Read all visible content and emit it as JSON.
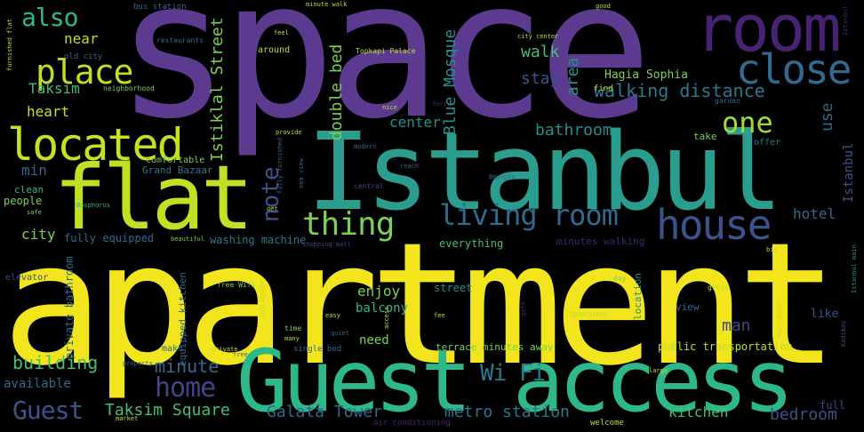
{
  "words": {
    "space": "space",
    "apartment": "apartment",
    "istanbul": "Istanbul",
    "guest_access": "Guest access",
    "flat": "flat",
    "room": "room",
    "located": "located",
    "close": "close",
    "place": "place",
    "house": "house",
    "living_room": "living room",
    "thing": "thing",
    "one": "one",
    "home": "home",
    "guest": "Guest",
    "wi_fi": "Wi Fi",
    "note": "note",
    "also": "also",
    "walking_distance": "walking distance",
    "building": "building",
    "minute": "minute",
    "taksim_square": "Taksim Square",
    "galata_tower": "Galata Tower",
    "metro_station": "metro station",
    "kitchen": "kitchen",
    "bedroom": "bedroom",
    "hotel": "hotel",
    "istiklal_street": "Istiklal Street",
    "blue_mosque": "Blue Mosque",
    "double_bed": "double bed",
    "bathroom": "bathroom",
    "heart": "heart",
    "taksim": "Taksim",
    "near": "near",
    "walk": "walk",
    "area": "area",
    "stay": "stay",
    "hagia_sophia": "Hagia Sophia",
    "center": "center",
    "city": "city",
    "min": "min",
    "enjoy": "enjoy",
    "balcony": "balcony",
    "need": "need",
    "street": "street",
    "available": "available",
    "fully_equipped": "fully equipped",
    "washing_machine": "washing machine",
    "everything": "everything",
    "location": "location",
    "view": "view",
    "terrace_minutes_away": "terrace minutes away",
    "public_transportation": "public transportation",
    "man": "man",
    "use": "use",
    "istanbul_small": "Istanbul",
    "elevator": "elevator",
    "people": "people",
    "clean": "clean",
    "grand_bazaar": "Grand Bazaar",
    "comfortable": "comfortable",
    "private_bathroom": "private bathroom",
    "equipped_kitchen": "equipped kitchen",
    "old_city": "old city",
    "bus_station": "bus station",
    "topkapi_palace": "Topkapi Palace",
    "around": "around",
    "neighborhood": "neighborhood",
    "minutes_walking": "minutes walking",
    "sultanahmet": "Sultanahmet",
    "make": "make",
    "single_bed": "single bed",
    "spacious": "spacious",
    "like": "like",
    "free_wifi": "free Wifi",
    "restaurants": "restaurants",
    "welcome": "welcome",
    "air_conditioning": "air conditioning",
    "full": "full",
    "take": "take",
    "offer": "offer",
    "great": "great",
    "day": "day",
    "shopping_mall": "shopping mall",
    "beautiful": "beautiful",
    "find": "find",
    "garden": "garden",
    "modern": "modern",
    "safe": "safe",
    "free": "free",
    "market": "market",
    "good": "good",
    "bosphorus": "Bosphorus",
    "beyoglu": "Beyoglu",
    "kadikoy": "Kadikoy",
    "reach": "reach",
    "central": "central",
    "provide": "provide",
    "fully_furnished": "fully furnished",
    "sea_view": "sea view",
    "hair_dryer": "hair dryer",
    "property": "property",
    "private": "private",
    "get": "get",
    "feel": "feel",
    "istanbul_tiny": "Istanbul",
    "gate": "gate",
    "many": "many",
    "easy": "easy",
    "time": "time",
    "quiet": "quiet",
    "access": "access",
    "nice": "nice",
    "ferry": "ferry",
    "large": "large",
    "big": "big",
    "fee": "fee",
    "minute_walk": "minute walk",
    "city_center": "city center",
    "furnished_flat": "furnished flat",
    "istanbul_main": "Istanbul main"
  },
  "colors": {
    "background": "#000000",
    "purple_dark": "#482374",
    "purple": "#5c3a8f",
    "indigo": "#414487",
    "blue": "#3b528b",
    "steel": "#31688e",
    "teal_blue": "#2a788e",
    "teal": "#21918c",
    "sea_green": "#22a884",
    "green": "#44bf70",
    "light_green": "#7ad151",
    "lime": "#bddf26",
    "yellow": "#f2e51d"
  }
}
